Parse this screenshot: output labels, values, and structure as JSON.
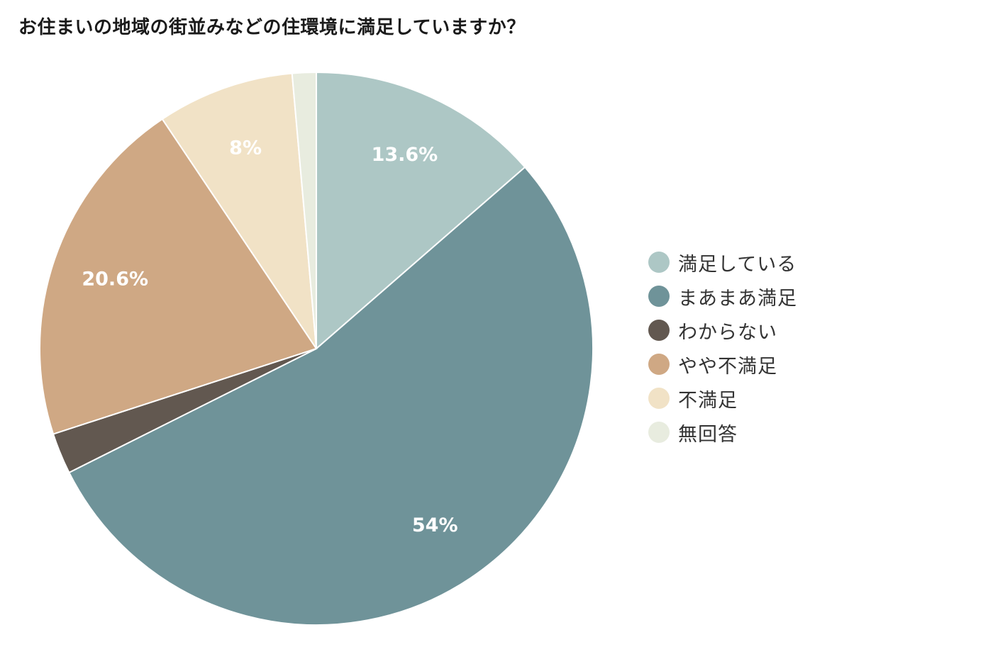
{
  "chart_data": {
    "type": "pie",
    "title": "お住まいの地域の街並みなどの住環境に満足していますか？",
    "slices": [
      {
        "label": "満足している",
        "value": 13.6,
        "display": "13.6%",
        "color": "#adc7c5"
      },
      {
        "label": "まあまあ満足",
        "value": 54,
        "display": "54%",
        "color": "#6f9399"
      },
      {
        "label": "わからない",
        "value": 2.4,
        "display": "",
        "color": "#625850"
      },
      {
        "label": "やや不満足",
        "value": 20.6,
        "display": "20.6%",
        "color": "#cfa884"
      },
      {
        "label": "不満足",
        "value": 8,
        "display": "8%",
        "color": "#f1e2c6"
      },
      {
        "label": "無回答",
        "value": 1.4,
        "display": "",
        "color": "#e8ecdf"
      }
    ],
    "legend_position": "right"
  }
}
